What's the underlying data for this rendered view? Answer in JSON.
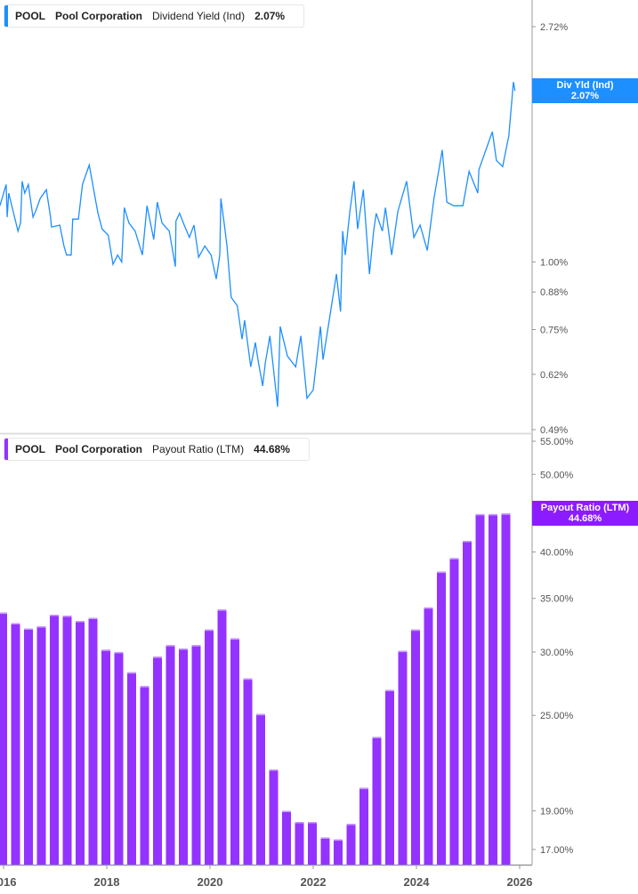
{
  "colors": {
    "yield": "#1e8fff",
    "payout": "#9433ff",
    "payout_tag": "#8c1cff",
    "axis": "#999999"
  },
  "top_legend": {
    "ticker": "POOL",
    "company": "Pool Corporation",
    "metric": "Dividend Yield (Ind)",
    "value": "2.07%"
  },
  "bottom_legend": {
    "ticker": "POOL",
    "company": "Pool Corporation",
    "metric": "Payout Ratio (LTM)",
    "value": "44.68%"
  },
  "top_tag": {
    "label": "Div Yld (Ind)",
    "value": "2.07%"
  },
  "bottom_tag": {
    "label": "Payout Ratio (LTM)",
    "value": "44.68%"
  },
  "chart_data": [
    {
      "type": "line",
      "series": [
        {
          "name": "Dividend Yield (Ind)",
          "x": [
            2015.93,
            2016.05,
            2016.07,
            2016.1,
            2016.28,
            2016.33,
            2016.36,
            2016.41,
            2016.48,
            2016.57,
            2016.62,
            2016.71,
            2016.83,
            2016.91,
            2016.93,
            2017.09,
            2017.17,
            2017.22,
            2017.31,
            2017.34,
            2017.45,
            2017.53,
            2017.66,
            2017.74,
            2017.83,
            2017.91,
            2018.03,
            2018.12,
            2018.21,
            2018.29,
            2018.34,
            2018.43,
            2018.55,
            2018.69,
            2018.78,
            2018.91,
            2018.98,
            2019.07,
            2019.21,
            2019.33,
            2019.34,
            2019.41,
            2019.5,
            2019.6,
            2019.69,
            2019.78,
            2019.9,
            2020.02,
            2020.12,
            2020.19,
            2020.21,
            2020.28,
            2020.33,
            2020.41,
            2020.53,
            2020.62,
            2020.67,
            2020.79,
            2020.88,
            2020.93,
            2021.02,
            2021.07,
            2021.16,
            2021.31,
            2021.36,
            2021.5,
            2021.66,
            2021.76,
            2021.88,
            2022.0,
            2022.14,
            2022.19,
            2022.31,
            2022.45,
            2022.53,
            2022.57,
            2022.62,
            2022.71,
            2022.79,
            2022.86,
            2022.97,
            2023.09,
            2023.17,
            2023.22,
            2023.34,
            2023.4,
            2023.52,
            2023.64,
            2023.81,
            2023.95,
            2024.07,
            2024.21,
            2024.34,
            2024.5,
            2024.59,
            2024.72,
            2024.9,
            2025.02,
            2025.19,
            2025.21,
            2025.47,
            2025.55,
            2025.67,
            2025.79,
            2025.88,
            2025.91
          ],
          "y": [
            1.27,
            1.39,
            1.21,
            1.34,
            1.14,
            1.18,
            1.41,
            1.34,
            1.39,
            1.21,
            1.24,
            1.31,
            1.36,
            1.21,
            1.16,
            1.17,
            1.07,
            1.03,
            1.03,
            1.2,
            1.2,
            1.39,
            1.51,
            1.37,
            1.23,
            1.15,
            1.12,
            0.99,
            1.03,
            1.0,
            1.26,
            1.18,
            1.14,
            1.03,
            1.27,
            1.1,
            1.29,
            1.18,
            1.14,
            0.98,
            1.19,
            1.23,
            1.17,
            1.11,
            1.17,
            1.02,
            1.07,
            1.03,
            0.93,
            1.03,
            1.31,
            1.17,
            1.07,
            0.86,
            0.83,
            0.72,
            0.78,
            0.64,
            0.71,
            0.66,
            0.59,
            0.65,
            0.73,
            0.54,
            0.76,
            0.67,
            0.64,
            0.73,
            0.56,
            0.58,
            0.76,
            0.66,
            0.78,
            0.95,
            0.81,
            1.14,
            1.03,
            1.24,
            1.41,
            1.15,
            1.36,
            0.95,
            1.14,
            1.23,
            1.14,
            1.26,
            1.03,
            1.24,
            1.41,
            1.11,
            1.17,
            1.05,
            1.31,
            1.61,
            1.29,
            1.27,
            1.27,
            1.47,
            1.34,
            1.48,
            1.74,
            1.54,
            1.5,
            1.71,
            2.15,
            2.07
          ]
        }
      ],
      "y_scale": "log",
      "ylim": [
        0.49,
        2.72
      ],
      "y_ticks": [
        "2.72%",
        "2.00%",
        "1.00%",
        "0.88%",
        "0.75%",
        "0.62%",
        "0.49%"
      ],
      "y_tick_values": [
        2.72,
        2.0,
        1.0,
        0.88,
        0.75,
        0.62,
        0.49
      ],
      "xlim": [
        2015.93,
        2026.27
      ],
      "grid": false
    },
    {
      "type": "bar",
      "series": [
        {
          "name": "Payout Ratio (LTM)",
          "x": [
            2016.0,
            2016.25,
            2016.5,
            2016.75,
            2017.0,
            2017.25,
            2017.5,
            2017.75,
            2018.0,
            2018.25,
            2018.5,
            2018.75,
            2019.0,
            2019.25,
            2019.5,
            2019.75,
            2020.0,
            2020.25,
            2020.5,
            2020.75,
            2021.0,
            2021.25,
            2021.5,
            2021.75,
            2022.0,
            2022.25,
            2022.5,
            2022.75,
            2023.0,
            2023.25,
            2023.5,
            2023.75,
            2024.0,
            2024.25,
            2024.5,
            2024.75,
            2025.0,
            2025.25,
            2025.5,
            2025.75
          ],
          "values": [
            33.6,
            32.6,
            32.1,
            32.3,
            33.4,
            33.3,
            32.8,
            33.1,
            30.2,
            30.0,
            28.3,
            27.2,
            29.6,
            30.6,
            30.3,
            30.6,
            32.0,
            33.9,
            31.2,
            27.8,
            25.1,
            21.4,
            19.0,
            18.4,
            18.4,
            17.6,
            17.5,
            18.3,
            20.3,
            23.5,
            26.9,
            30.1,
            32.0,
            34.1,
            37.8,
            39.3,
            41.3,
            44.6,
            44.6,
            44.68
          ]
        }
      ],
      "y_scale": "log",
      "ylim": [
        16.0,
        55.0
      ],
      "y_ticks": [
        "55.00%",
        "50.00%",
        "40.00%",
        "35.00%",
        "30.00%",
        "25.00%",
        "19.00%",
        "17.00%"
      ],
      "y_tick_values": [
        55,
        50,
        40,
        35,
        30,
        25,
        19,
        17
      ],
      "x_ticks": [
        "2016",
        "2018",
        "2020",
        "2022",
        "2024",
        "2026"
      ],
      "x_tick_values": [
        2016,
        2018,
        2020,
        2022,
        2024,
        2026
      ],
      "xlim": [
        2015.93,
        2026.27
      ],
      "grid": false
    }
  ]
}
